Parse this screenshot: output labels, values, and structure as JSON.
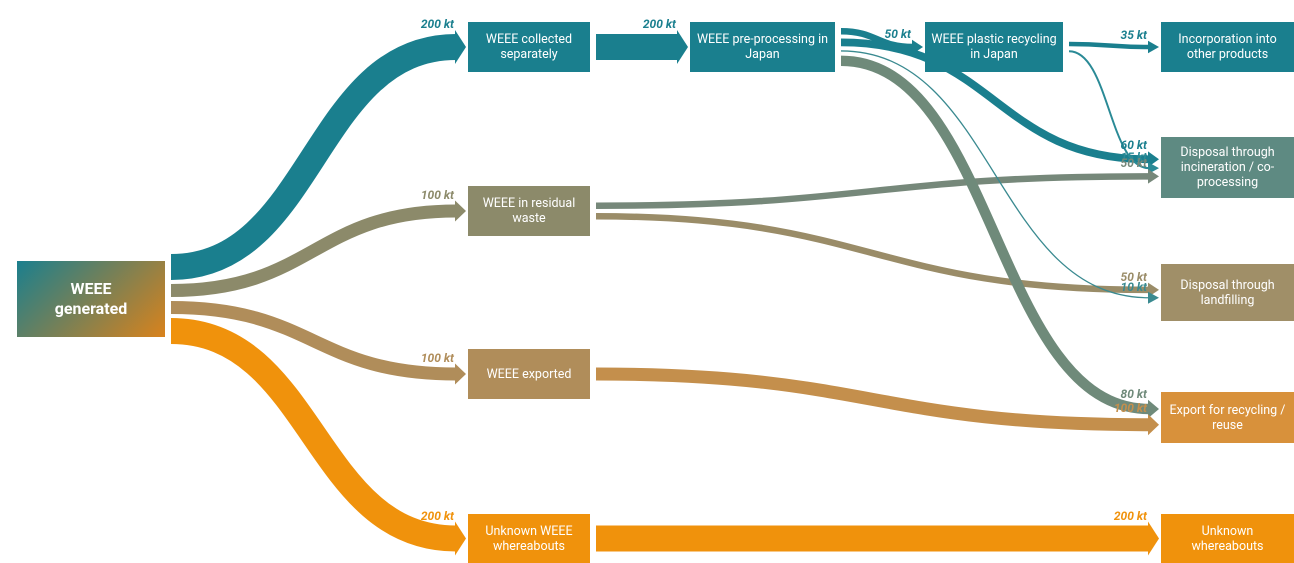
{
  "nodes": [
    {
      "label": "WEEE generated",
      "color": "#1a7f8e",
      "color2": "#d9821c"
    },
    {
      "label": "WEEE collected separately",
      "color": "#1a7f8e"
    },
    {
      "label": "WEEE in residual waste",
      "color": "#8c8a6a"
    },
    {
      "label": "WEEE exported",
      "color": "#b08d5a"
    },
    {
      "label": "Unknown WEEE whereabouts",
      "color": "#f0920c"
    },
    {
      "label": "WEEE pre-processing in Japan",
      "color": "#1a7f8e"
    },
    {
      "label": "WEEE plastic recycling in Japan",
      "color": "#1a7f8e"
    },
    {
      "label": "Incorporation into other products",
      "color": "#1a7f8e"
    },
    {
      "label": "Disposal through incineration / co-processing",
      "color": "#5e8a82"
    },
    {
      "label": "Disposal through landfilling",
      "color": "#a08f68"
    },
    {
      "label": "Export for recycling / reuse",
      "color": "#d8913b"
    },
    {
      "label": "Unknown whereabouts",
      "color": "#f0920c"
    }
  ],
  "links": [
    {
      "source": 0,
      "target": 1,
      "value": 200,
      "label": "200 kt",
      "color": "#1a7f8e"
    },
    {
      "source": 0,
      "target": 2,
      "value": 100,
      "label": "100 kt",
      "color": "#8c8a6a"
    },
    {
      "source": 0,
      "target": 3,
      "value": 100,
      "label": "100 kt",
      "color": "#b08d5a"
    },
    {
      "source": 0,
      "target": 4,
      "value": 200,
      "label": "200 kt",
      "color": "#f0920c"
    },
    {
      "source": 1,
      "target": 5,
      "value": 200,
      "label": "200 kt",
      "color": "#1a7f8e"
    },
    {
      "source": 5,
      "target": 6,
      "value": 50,
      "label": "50 kt",
      "color": "#1a7f8e"
    },
    {
      "source": 6,
      "target": 7,
      "value": 35,
      "label": "35 kt",
      "color": "#1a7f8e"
    },
    {
      "source": 5,
      "target": 8,
      "value": 60,
      "label": "60 kt",
      "color": "#1a7f8e"
    },
    {
      "source": 6,
      "target": 8,
      "value": 15,
      "label": "15 kt",
      "color": "#2a8a96"
    },
    {
      "source": 2,
      "target": 8,
      "value": 50,
      "label": "50 kt",
      "color": "#76887a"
    },
    {
      "source": 2,
      "target": 9,
      "value": 50,
      "label": "50 kt",
      "color": "#9a8c68"
    },
    {
      "source": 5,
      "target": 9,
      "value": 10,
      "label": "10 kt",
      "color": "#3a8a90"
    },
    {
      "source": 5,
      "target": 10,
      "value": 80,
      "label": "80 kt",
      "color": "#6f8a7a"
    },
    {
      "source": 3,
      "target": 10,
      "value": 100,
      "label": "100 kt",
      "color": "#c48f4c"
    },
    {
      "source": 4,
      "target": 11,
      "value": 200,
      "label": "200 kt",
      "color": "#f0920c"
    }
  ]
}
